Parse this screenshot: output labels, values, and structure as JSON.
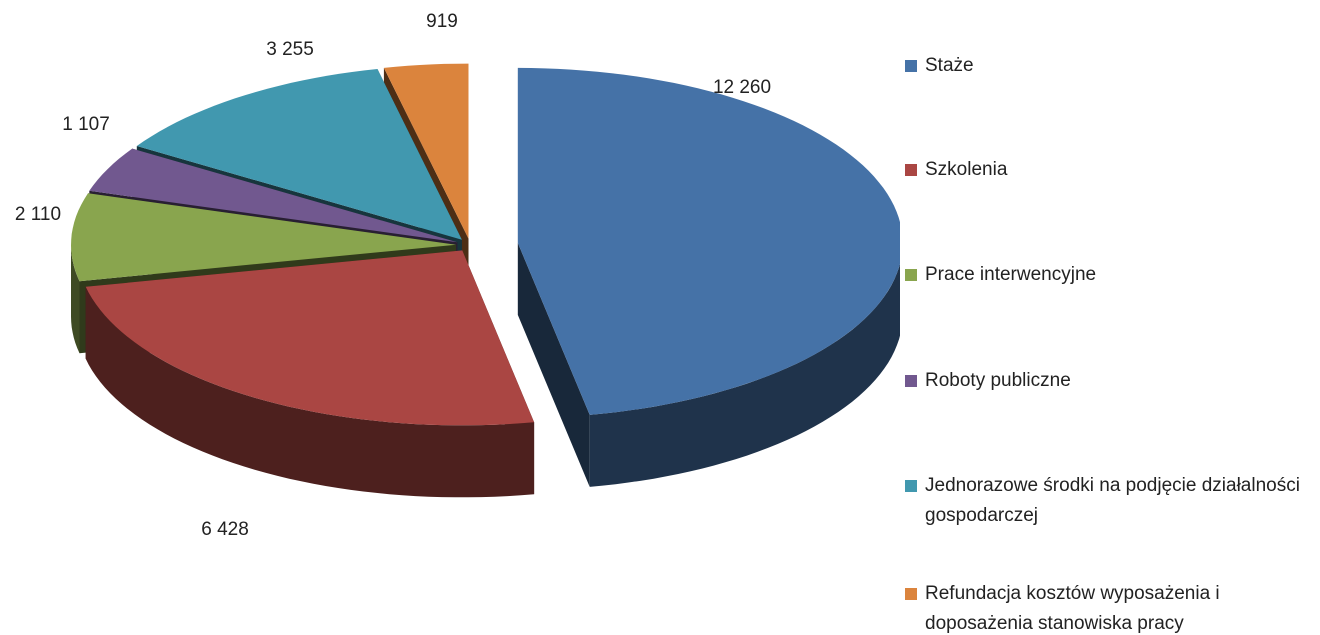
{
  "chart_data": {
    "type": "pie",
    "categories": [
      "Staże",
      "Szkolenia",
      "Prace interwencyjne",
      "Roboty publiczne",
      "Jednorazowe środki na podjęcie działalności gospodarczej",
      "Refundacja kosztów wyposażenia i doposażenia stanowiska pracy"
    ],
    "values": [
      12260,
      6428,
      2110,
      1107,
      3255,
      919
    ],
    "value_labels": [
      "12 260",
      "6 428",
      "2 110",
      "1 107",
      "3 255",
      "919"
    ],
    "colors": [
      "#4572a7",
      "#aa4643",
      "#89a54e",
      "#71588f",
      "#4198af",
      "#db843d"
    ],
    "legend": "right"
  }
}
